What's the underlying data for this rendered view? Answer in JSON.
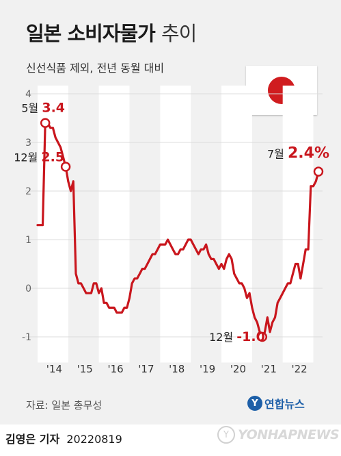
{
  "header": {
    "title_bold": "일본 소비자물가",
    "title_light": "추이",
    "subtitle": "신선식품 제외, 전년 동월 대비"
  },
  "flag": {
    "sun_color": "#d01c1f",
    "icon": "japan-flag-icon"
  },
  "footer": {
    "source": "자료: 일본 총무성",
    "logo_mark": "Y",
    "logo_text": "연합뉴스",
    "credit_name": "김영은 기자",
    "credit_date": "20220819",
    "watermark_mark": "Y",
    "watermark_text": "YONHAPNEWS"
  },
  "chart_data": {
    "type": "line",
    "ylim": [
      -1.5,
      4
    ],
    "yticks": [
      "4",
      "3",
      "2",
      "1",
      "0",
      "-1"
    ],
    "year_labels": [
      "'14",
      "'15",
      "'16",
      "'17",
      "'18",
      "'19",
      "'20",
      "'21",
      "'22"
    ],
    "grid": true,
    "colors": {
      "line": "#c9161d",
      "grid": "#dcdcdc",
      "band": "#ffffff",
      "axis_text": "#666666"
    },
    "start_year": 2014,
    "series": [
      {
        "values": [
          1.3,
          1.3,
          1.3,
          3.4,
          3.4,
          3.3,
          3.3,
          3.1,
          3.0,
          2.9,
          2.7,
          2.5,
          2.2,
          2.0,
          2.2,
          0.3,
          0.1,
          0.1,
          0.0,
          -0.1,
          -0.1,
          -0.1,
          0.1,
          0.1,
          -0.1,
          0.0,
          -0.3,
          -0.3,
          -0.4,
          -0.4,
          -0.4,
          -0.5,
          -0.5,
          -0.5,
          -0.4,
          -0.4,
          -0.2,
          0.1,
          0.2,
          0.2,
          0.3,
          0.4,
          0.4,
          0.5,
          0.6,
          0.7,
          0.7,
          0.8,
          0.9,
          0.9,
          0.9,
          1.0,
          0.9,
          0.8,
          0.7,
          0.7,
          0.8,
          0.8,
          0.9,
          1.0,
          1.0,
          0.9,
          0.8,
          0.7,
          0.8,
          0.8,
          0.9,
          0.7,
          0.6,
          0.6,
          0.5,
          0.4,
          0.5,
          0.4,
          0.6,
          0.7,
          0.6,
          0.3,
          0.2,
          0.1,
          0.1,
          0.0,
          -0.2,
          -0.1,
          -0.4,
          -0.6,
          -0.7,
          -0.9,
          -1.0,
          -0.9,
          -0.6,
          -0.9,
          -0.7,
          -0.6,
          -0.3,
          -0.2,
          -0.1,
          0.0,
          0.1,
          0.1,
          0.3,
          0.5,
          0.5,
          0.2,
          0.5,
          0.8,
          0.8,
          2.1,
          2.1,
          2.2,
          2.4
        ]
      }
    ],
    "annotations": [
      {
        "month_label": "5월",
        "value_label": "3.4"
      },
      {
        "month_label": "12월",
        "value_label": "2.5"
      },
      {
        "month_label": "12월",
        "value_label": "-1.0"
      },
      {
        "month_label": "7월",
        "value_label": "2.4%"
      }
    ]
  }
}
